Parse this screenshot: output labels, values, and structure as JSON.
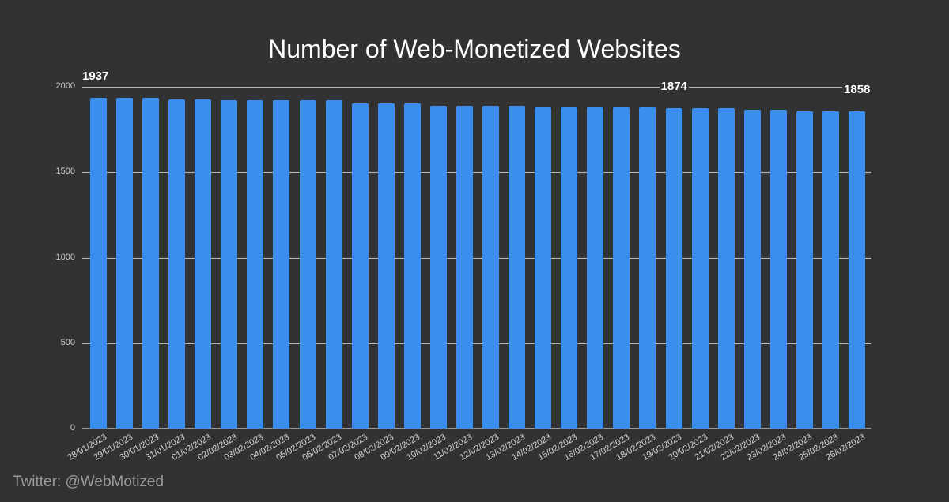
{
  "chart_data": {
    "type": "bar",
    "title": "Number of Web-Monetized Websites",
    "xlabel": "",
    "ylabel": "",
    "ylim": [
      0,
      2000
    ],
    "yticks": [
      0,
      500,
      1000,
      1500,
      2000
    ],
    "grid": true,
    "legend": null,
    "bar_color": "#3a8fee",
    "categories": [
      "28/01/2023",
      "29/01/2023",
      "30/01/2023",
      "31/01/2023",
      "01/02/2023",
      "02/02/2023",
      "03/02/2023",
      "04/02/2023",
      "05/02/2023",
      "06/02/2023",
      "07/02/2023",
      "08/02/2023",
      "09/02/2023",
      "10/02/2023",
      "11/02/2023",
      "12/02/2023",
      "13/02/2023",
      "14/02/2023",
      "15/02/2023",
      "16/02/2023",
      "17/02/2023",
      "18/02/2023",
      "19/02/2023",
      "20/02/2023",
      "21/02/2023",
      "22/02/2023",
      "23/02/2023",
      "24/02/2023",
      "25/02/2023",
      "26/02/2023"
    ],
    "values": [
      1937,
      1937,
      1937,
      1926,
      1926,
      1921,
      1921,
      1921,
      1921,
      1921,
      1905,
      1905,
      1905,
      1889,
      1889,
      1889,
      1889,
      1882,
      1882,
      1882,
      1882,
      1882,
      1874,
      1874,
      1874,
      1868,
      1868,
      1858,
      1858,
      1858
    ],
    "annotations": [
      {
        "index": 0,
        "label": "1937"
      },
      {
        "index": 22,
        "label": "1874"
      },
      {
        "index": 29,
        "label": "1858"
      }
    ]
  },
  "footer": {
    "credit": "Twitter: @WebMotized"
  },
  "colors": {
    "background": "#323232",
    "bar": "#3a8fee",
    "text": "#ffffff"
  }
}
